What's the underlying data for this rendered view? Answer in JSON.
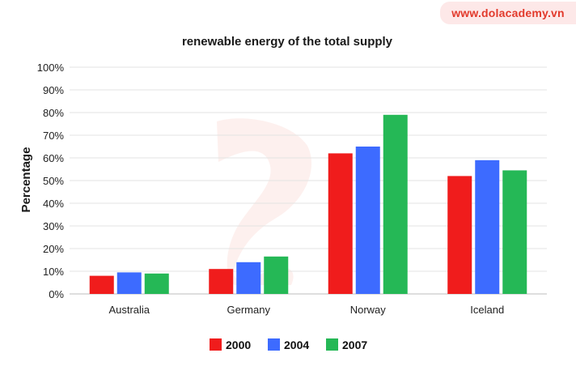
{
  "watermark": {
    "text": "www.dolacademy.vn"
  },
  "chart_data": {
    "type": "bar",
    "title": "renewable energy of the total supply",
    "xlabel": "",
    "ylabel": "Percentage",
    "ylim": [
      0,
      100
    ],
    "yticks": [
      "0%",
      "10%",
      "20%",
      "30%",
      "40%",
      "50%",
      "60%",
      "70%",
      "80%",
      "90%",
      "100%"
    ],
    "categories": [
      "Australia",
      "Germany",
      "Norway",
      "Iceland"
    ],
    "series": [
      {
        "name": "2000",
        "color": "#f01c1c",
        "values": [
          8,
          11,
          62,
          52
        ]
      },
      {
        "name": "2004",
        "color": "#3d6bff",
        "values": [
          9.5,
          14,
          65,
          59
        ]
      },
      {
        "name": "2007",
        "color": "#25b856",
        "values": [
          9,
          16.5,
          79,
          54.5
        ]
      }
    ],
    "grid": true,
    "legend": "bottom-center"
  }
}
